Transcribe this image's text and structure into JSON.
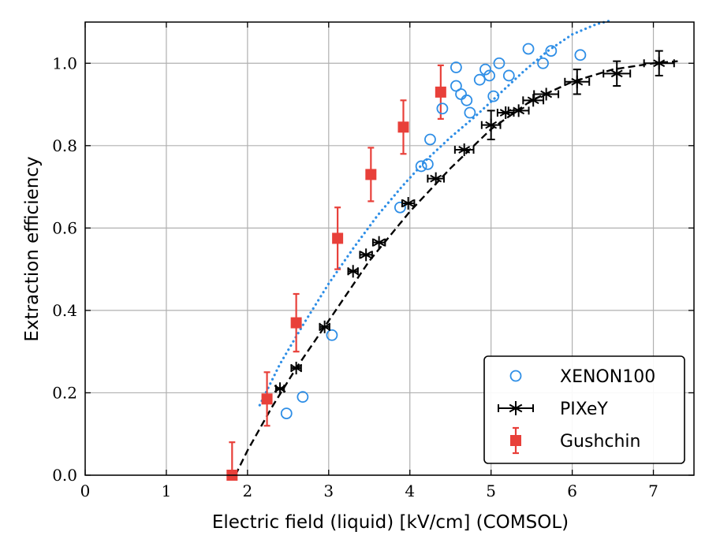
{
  "chart_data": {
    "type": "scatter",
    "xlabel": "Electric field (liquid) [kV/cm] (COMSOL)",
    "ylabel": "Extraction efficiency",
    "xlim": [
      0,
      7.5
    ],
    "ylim": [
      0,
      1.1
    ],
    "xticks": [
      0,
      1,
      2,
      3,
      4,
      5,
      6,
      7
    ],
    "yticks": [
      0.0,
      0.2,
      0.4,
      0.6,
      0.8,
      1.0
    ],
    "xtick_labels": [
      "0",
      "1",
      "2",
      "3",
      "4",
      "5",
      "6",
      "7"
    ],
    "ytick_labels": [
      "0.0",
      "0.2",
      "0.4",
      "0.6",
      "0.8",
      "1.0"
    ],
    "grid": true,
    "legend_position": "bottom-right",
    "series": [
      {
        "name": "XENON100",
        "marker": "open-circle",
        "color": "#2e8ee6",
        "points": [
          [
            2.48,
            0.15
          ],
          [
            2.68,
            0.19
          ],
          [
            3.04,
            0.34
          ],
          [
            3.88,
            0.65
          ],
          [
            4.14,
            0.75
          ],
          [
            4.22,
            0.755
          ],
          [
            4.25,
            0.815
          ],
          [
            4.4,
            0.89
          ],
          [
            4.57,
            0.945
          ],
          [
            4.57,
            0.99
          ],
          [
            4.63,
            0.925
          ],
          [
            4.7,
            0.91
          ],
          [
            4.74,
            0.88
          ],
          [
            4.86,
            0.96
          ],
          [
            4.93,
            0.985
          ],
          [
            4.98,
            0.97
          ],
          [
            5.03,
            0.92
          ],
          [
            5.1,
            1.0
          ],
          [
            5.22,
            0.97
          ],
          [
            5.46,
            1.035
          ],
          [
            5.64,
            1.0
          ],
          [
            5.74,
            1.03
          ],
          [
            6.1,
            1.02
          ]
        ]
      },
      {
        "name": "PIXeY",
        "marker": "star-errorbar",
        "color": "#000000",
        "points": [
          [
            2.4,
            0.21,
            0.1,
            0.0
          ],
          [
            2.6,
            0.26,
            0.12,
            0.0
          ],
          [
            2.95,
            0.36,
            0.12,
            0.0
          ],
          [
            3.3,
            0.495,
            0.12,
            0.0
          ],
          [
            3.46,
            0.535,
            0.15,
            0.0
          ],
          [
            3.62,
            0.565,
            0.15,
            0.0
          ],
          [
            3.98,
            0.66,
            0.15,
            0.0
          ],
          [
            4.32,
            0.72,
            0.2,
            0.0
          ],
          [
            4.67,
            0.79,
            0.23,
            0.0
          ],
          [
            5.0,
            0.85,
            0.23,
            0.035
          ],
          [
            5.18,
            0.88,
            0.2,
            0.0
          ],
          [
            5.34,
            0.885,
            0.25,
            0.0
          ],
          [
            5.52,
            0.91,
            0.25,
            0.0
          ],
          [
            5.68,
            0.925,
            0.3,
            0.0
          ],
          [
            6.06,
            0.955,
            0.3,
            0.03
          ],
          [
            6.55,
            0.975,
            0.33,
            0.03
          ],
          [
            7.07,
            1.0,
            0.37,
            0.03
          ]
        ]
      },
      {
        "name": "Gushchin",
        "marker": "filled-square-errorbar",
        "color": "#e8403a",
        "points": [
          [
            1.81,
            0.0,
            0.08
          ],
          [
            2.24,
            0.185,
            0.065
          ],
          [
            2.6,
            0.37,
            0.07
          ],
          [
            3.11,
            0.575,
            0.075
          ],
          [
            3.52,
            0.73,
            0.065
          ],
          [
            3.92,
            0.845,
            0.065
          ],
          [
            4.38,
            0.93,
            0.065
          ]
        ]
      }
    ],
    "fits": [
      {
        "style": "dotted",
        "color": "#2e8ee6",
        "x": [
          2.15,
          2.4,
          2.7,
          3.0,
          3.3,
          3.6,
          3.9,
          4.2,
          4.5,
          4.8,
          5.1,
          5.4,
          5.7,
          6.0,
          6.3,
          6.5
        ],
        "y": [
          0.17,
          0.27,
          0.37,
          0.465,
          0.55,
          0.63,
          0.7,
          0.765,
          0.82,
          0.87,
          0.925,
          0.98,
          1.03,
          1.07,
          1.095,
          1.105
        ]
      },
      {
        "style": "dashed",
        "color": "#000000",
        "x": [
          1.85,
          2.0,
          2.3,
          2.6,
          3.0,
          3.5,
          4.0,
          4.5,
          5.0,
          5.5,
          6.0,
          6.5,
          7.0,
          7.3
        ],
        "y": [
          0.0,
          0.06,
          0.165,
          0.26,
          0.375,
          0.52,
          0.64,
          0.745,
          0.84,
          0.91,
          0.955,
          0.985,
          1.0,
          1.005
        ]
      }
    ]
  }
}
